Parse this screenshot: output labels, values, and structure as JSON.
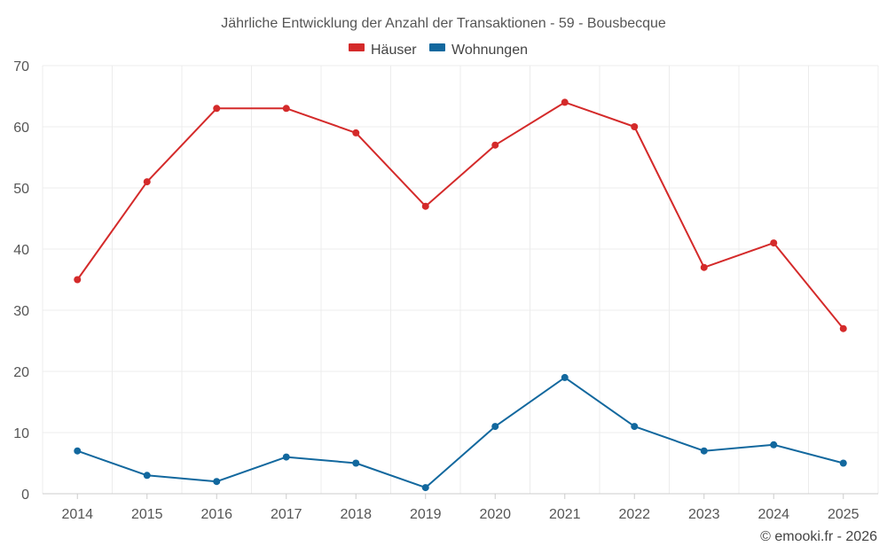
{
  "chart_data": {
    "type": "line",
    "title": "Jährliche Entwicklung der Anzahl der Transaktionen - 59 - Bousbecque",
    "categories": [
      "2014",
      "2015",
      "2016",
      "2017",
      "2018",
      "2019",
      "2020",
      "2021",
      "2022",
      "2023",
      "2024",
      "2025"
    ],
    "series": [
      {
        "name": "Häuser",
        "color": "#d42a2a",
        "values": [
          35,
          51,
          63,
          63,
          59,
          47,
          57,
          64,
          60,
          37,
          41,
          27
        ]
      },
      {
        "name": "Wohnungen",
        "color": "#12689e",
        "values": [
          7,
          3,
          2,
          6,
          5,
          1,
          11,
          19,
          11,
          7,
          8,
          5
        ]
      }
    ],
    "ylim": [
      0,
      70
    ],
    "yticks": [
      "0",
      "10",
      "20",
      "30",
      "40",
      "50",
      "60",
      "70"
    ],
    "xlabel": "",
    "ylabel": "",
    "grid": true,
    "legend": "top-center"
  },
  "credit": "© emooki.fr - 2026"
}
